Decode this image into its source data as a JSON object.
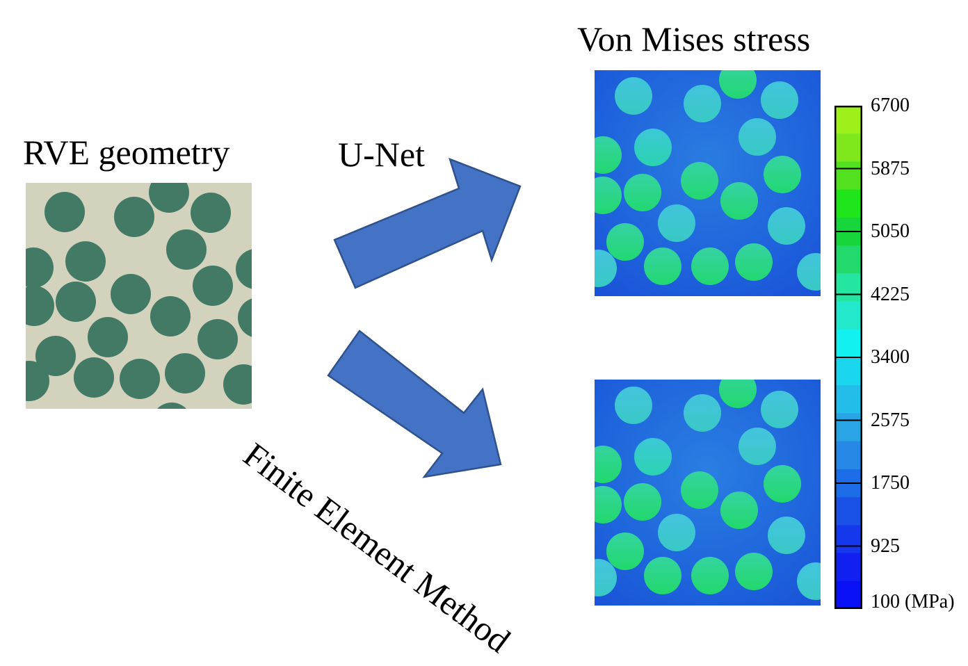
{
  "titles": {
    "rve": "RVE geometry",
    "von_mises": "Von Mises stress"
  },
  "arrows": {
    "unet": "U-Net",
    "fem": "Finite Element Method"
  },
  "colors": {
    "matrix": "#d3d3bd",
    "fiber": "#437a65",
    "arrow": "#4472c4",
    "arrow_border": "#2f528f"
  },
  "colorbar": {
    "unit": "(MPa)",
    "ticks": [
      "6700",
      "5875",
      "5050",
      "4225",
      "3400",
      "2575",
      "1750",
      "925",
      "100"
    ],
    "bands_top_to_bottom": [
      "#9ef01a",
      "#7ee81c",
      "#52e01f",
      "#1ee61a",
      "#16d63c",
      "#22d96b",
      "#25e6a0",
      "#22e8cc",
      "#12f0f0",
      "#1ad6ee",
      "#22bde8",
      "#29a4e4",
      "#2689e6",
      "#1e6de8",
      "#1a52e8",
      "#1638ec",
      "#1020f0",
      "#0a10f4"
    ]
  }
}
